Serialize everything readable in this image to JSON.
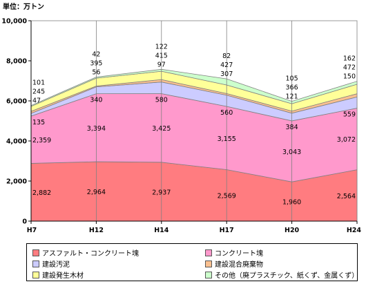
{
  "unit_label": "単位：万トン",
  "chart_data": {
    "type": "area",
    "stacked": true,
    "categories": [
      "H7",
      "H12",
      "H14",
      "H17",
      "H20",
      "H24"
    ],
    "y_ticks": [
      "0",
      "2,000",
      "4,000",
      "6,000",
      "8,000",
      "10,000"
    ],
    "ylim": [
      0,
      10000
    ],
    "series": [
      {
        "name": "アスファルト・コンクリート塊",
        "color": "#ff7c80",
        "values": [
          2882,
          2964,
          2937,
          2569,
          1960,
          2564
        ],
        "labels": [
          "2,882",
          "2,964",
          "2,937",
          "2,569",
          "1,960",
          "2,564"
        ]
      },
      {
        "name": "コンクリート塊",
        "color": "#ff99cc",
        "values": [
          2359,
          3394,
          3425,
          3155,
          3043,
          3072
        ],
        "labels": [
          "2,359",
          "3,394",
          "3,425",
          "3,155",
          "3,043",
          "3,072"
        ]
      },
      {
        "name": "建設汚泥",
        "color": "#ccccff",
        "values": [
          135,
          340,
          580,
          560,
          384,
          559
        ],
        "labels": [
          "135",
          "340",
          "580",
          "560",
          "384",
          "559"
        ]
      },
      {
        "name": "建設混合廃棄物",
        "color": "#fac090",
        "values": [
          101,
          42,
          122,
          82,
          105,
          162
        ],
        "labels": [
          "101",
          "42",
          "122",
          "82",
          "105",
          "162"
        ]
      },
      {
        "name": "建設発生木材",
        "color": "#ffff99",
        "values": [
          245,
          395,
          415,
          427,
          366,
          472
        ],
        "labels": [
          "245",
          "395",
          "415",
          "427",
          "366",
          "472"
        ]
      },
      {
        "name": "その他（廃プラスチック、紙くず、金属くず）",
        "color": "#ccffcc",
        "values": [
          47,
          56,
          97,
          307,
          121,
          150
        ],
        "labels": [
          "47",
          "56",
          "97",
          "307",
          "121",
          "150"
        ]
      }
    ],
    "grid": "vertical",
    "legend_position": "bottom"
  }
}
